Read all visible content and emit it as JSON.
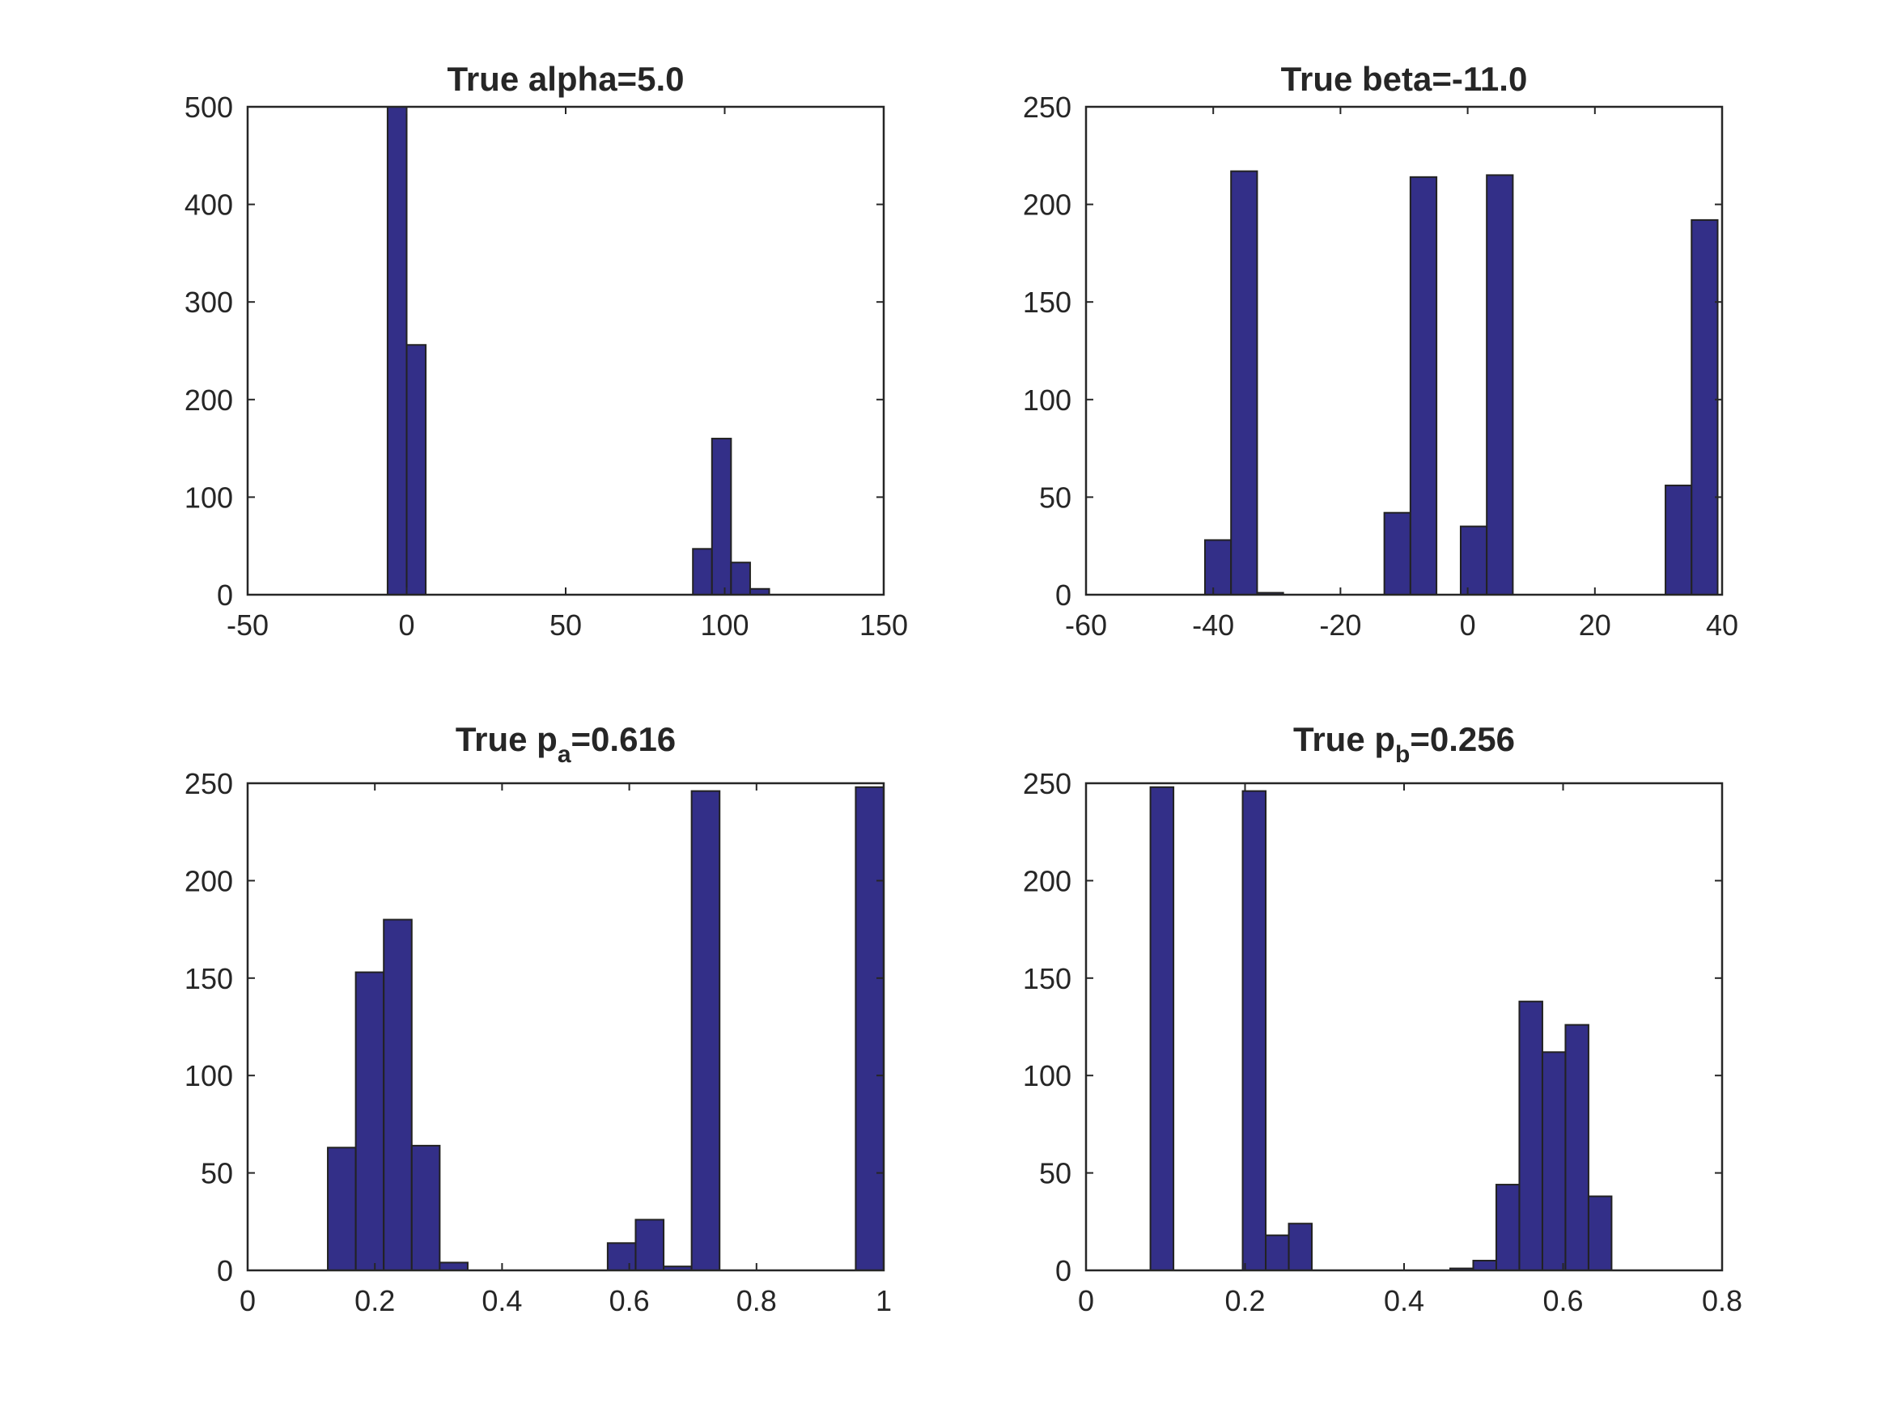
{
  "chart_data": [
    {
      "type": "bar",
      "title_main": "True alpha=5.0",
      "title_sub": "",
      "title_rest": "",
      "xlim": [
        -50,
        150
      ],
      "ylim": [
        0,
        500
      ],
      "xticks": [
        -50,
        0,
        50,
        100,
        150
      ],
      "xtick_labels": [
        "-50",
        "0",
        "50",
        "100",
        "150"
      ],
      "yticks": [
        0,
        100,
        200,
        300,
        400,
        500
      ],
      "ytick_labels": [
        "0",
        "100",
        "200",
        "300",
        "400",
        "500"
      ],
      "bins": [
        {
          "x0": -6,
          "x1": 0,
          "value": 500
        },
        {
          "x0": 0,
          "x1": 6,
          "value": 256
        },
        {
          "x0": 90,
          "x1": 96,
          "value": 47
        },
        {
          "x0": 96,
          "x1": 102,
          "value": 160
        },
        {
          "x0": 102,
          "x1": 108,
          "value": 33
        },
        {
          "x0": 108,
          "x1": 114,
          "value": 6
        }
      ],
      "bar_color": "#332f88"
    },
    {
      "type": "bar",
      "title_main": "True beta=-11.0",
      "title_sub": "",
      "title_rest": "",
      "xlim": [
        -60,
        40
      ],
      "ylim": [
        0,
        250
      ],
      "xticks": [
        -60,
        -40,
        -20,
        0,
        20,
        40
      ],
      "xtick_labels": [
        "-60",
        "-40",
        "-20",
        "0",
        "20",
        "40"
      ],
      "yticks": [
        0,
        50,
        100,
        150,
        200,
        250
      ],
      "ytick_labels": [
        "0",
        "50",
        "100",
        "150",
        "200",
        "250"
      ],
      "bins": [
        {
          "x0": -41.3,
          "x1": -37.2,
          "value": 28
        },
        {
          "x0": -37.2,
          "x1": -33.1,
          "value": 217
        },
        {
          "x0": -33.1,
          "x1": -29.0,
          "value": 1
        },
        {
          "x0": -13.1,
          "x1": -9.0,
          "value": 42
        },
        {
          "x0": -9.0,
          "x1": -4.9,
          "value": 214
        },
        {
          "x0": -1.1,
          "x1": 3.0,
          "value": 35
        },
        {
          "x0": 3.0,
          "x1": 7.1,
          "value": 215
        },
        {
          "x0": 31.1,
          "x1": 35.2,
          "value": 56
        },
        {
          "x0": 35.2,
          "x1": 39.3,
          "value": 192
        }
      ],
      "bar_color": "#332f88"
    },
    {
      "type": "bar",
      "title_main": "True p",
      "title_sub": "a",
      "title_rest": "=0.616",
      "xlim": [
        0,
        1
      ],
      "ylim": [
        0,
        250
      ],
      "xticks": [
        0,
        0.2,
        0.4,
        0.6,
        0.8,
        1
      ],
      "xtick_labels": [
        "0",
        "0.2",
        "0.4",
        "0.6",
        "0.8",
        "1"
      ],
      "yticks": [
        0,
        50,
        100,
        150,
        200,
        250
      ],
      "ytick_labels": [
        "0",
        "50",
        "100",
        "150",
        "200",
        "250"
      ],
      "bins": [
        {
          "x0": 0.126,
          "x1": 0.17,
          "value": 63
        },
        {
          "x0": 0.17,
          "x1": 0.214,
          "value": 153
        },
        {
          "x0": 0.214,
          "x1": 0.258,
          "value": 180
        },
        {
          "x0": 0.258,
          "x1": 0.302,
          "value": 64
        },
        {
          "x0": 0.302,
          "x1": 0.346,
          "value": 4
        },
        {
          "x0": 0.566,
          "x1": 0.61,
          "value": 14
        },
        {
          "x0": 0.61,
          "x1": 0.654,
          "value": 26
        },
        {
          "x0": 0.654,
          "x1": 0.698,
          "value": 2
        },
        {
          "x0": 0.698,
          "x1": 0.742,
          "value": 246
        },
        {
          "x0": 0.956,
          "x1": 1.0,
          "value": 248
        }
      ],
      "bar_color": "#332f88"
    },
    {
      "type": "bar",
      "title_main": "True p",
      "title_sub": "b",
      "title_rest": "=0.256",
      "xlim": [
        0,
        0.8
      ],
      "ylim": [
        0,
        250
      ],
      "xticks": [
        0,
        0.2,
        0.4,
        0.6,
        0.8
      ],
      "xtick_labels": [
        "0",
        "0.2",
        "0.4",
        "0.6",
        "0.8"
      ],
      "yticks": [
        0,
        50,
        100,
        150,
        200,
        250
      ],
      "ytick_labels": [
        "0",
        "50",
        "100",
        "150",
        "200",
        "250"
      ],
      "bins": [
        {
          "x0": 0.081,
          "x1": 0.11,
          "value": 248
        },
        {
          "x0": 0.197,
          "x1": 0.226,
          "value": 246
        },
        {
          "x0": 0.226,
          "x1": 0.255,
          "value": 18
        },
        {
          "x0": 0.255,
          "x1": 0.284,
          "value": 24
        },
        {
          "x0": 0.458,
          "x1": 0.487,
          "value": 1
        },
        {
          "x0": 0.487,
          "x1": 0.516,
          "value": 5
        },
        {
          "x0": 0.516,
          "x1": 0.545,
          "value": 44
        },
        {
          "x0": 0.545,
          "x1": 0.574,
          "value": 138
        },
        {
          "x0": 0.574,
          "x1": 0.603,
          "value": 112
        },
        {
          "x0": 0.603,
          "x1": 0.632,
          "value": 126
        },
        {
          "x0": 0.632,
          "x1": 0.661,
          "value": 38
        }
      ],
      "bar_color": "#332f88"
    }
  ]
}
